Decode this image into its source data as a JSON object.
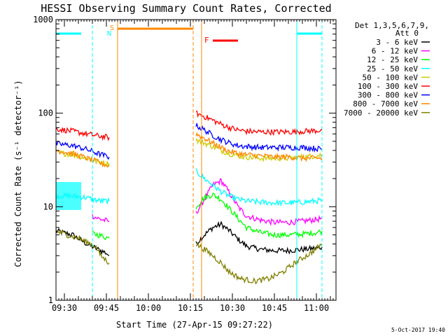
{
  "chart_data": {
    "type": "line",
    "title": "HESSI Observing Summary Count Rates, Corrected",
    "ylabel": "Corrected Count Rate",
    "ylabel_unit": "(s⁻¹ detector⁻¹)",
    "xlabel": "Start Time (27-Apr-15 09:27:22)",
    "y_scale": "log",
    "ylim": [
      1,
      1000
    ],
    "xlim_minutes": [
      "09:27",
      "11:07"
    ],
    "x_tick_labels": [
      "09:30",
      "09:45",
      "10:00",
      "10:15",
      "10:30",
      "10:45",
      "11:00"
    ],
    "y_tick_labels": [
      "1",
      "10",
      "100",
      "1000"
    ],
    "legend_header": [
      "Det 1,3,5,6,7,9,",
      "Att 0"
    ],
    "legend_position": "right",
    "grid": false,
    "series": [
      {
        "name": "3 - 6 keV",
        "color": "#000000",
        "segments": [
          {
            "x": [
              "09:27",
              "09:33",
              "09:38",
              "09:42",
              "09:44",
              "09:45",
              "09:46"
            ],
            "y": [
              5.5,
              5.0,
              4.0,
              3.5,
              3.3,
              3.2,
              3.0
            ]
          },
          {
            "x": [
              "10:17",
              "10:20",
              "10:23",
              "10:26",
              "10:29",
              "10:32",
              "10:35",
              "10:40",
              "10:45",
              "10:50",
              "10:55",
              "11:00",
              "11:02"
            ],
            "y": [
              4.0,
              5.0,
              6.0,
              6.5,
              5.5,
              4.5,
              3.8,
              3.5,
              3.4,
              3.4,
              3.5,
              3.6,
              3.7
            ]
          }
        ]
      },
      {
        "name": "6 - 12 keV",
        "color": "#ff00ff",
        "segments": [
          {
            "x": [
              "09:40",
              "09:42",
              "09:44",
              "09:46"
            ],
            "y": [
              8.0,
              7.5,
              7.2,
              7.0
            ]
          },
          {
            "x": [
              "10:17",
              "10:20",
              "10:23",
              "10:26",
              "10:29",
              "10:32",
              "10:35",
              "10:40",
              "10:45",
              "10:50",
              "10:55",
              "11:00",
              "11:02"
            ],
            "y": [
              8.5,
              12.0,
              17.0,
              19.0,
              14.0,
              10.0,
              8.0,
              7.2,
              6.8,
              6.8,
              7.0,
              7.3,
              7.5
            ]
          }
        ]
      },
      {
        "name": "12 - 25 keV",
        "color": "#00ff00",
        "segments": [
          {
            "x": [
              "09:40",
              "09:42",
              "09:44",
              "09:46"
            ],
            "y": [
              5.2,
              5.0,
              4.8,
              4.6
            ]
          },
          {
            "x": [
              "10:17",
              "10:20",
              "10:23",
              "10:26",
              "10:29",
              "10:32",
              "10:35",
              "10:40",
              "10:45",
              "10:50",
              "10:55",
              "11:00",
              "11:02"
            ],
            "y": [
              10.0,
              12.5,
              13.5,
              12.0,
              9.5,
              7.5,
              6.0,
              5.3,
              5.0,
              5.0,
              5.1,
              5.3,
              5.5
            ]
          }
        ]
      },
      {
        "name": "25 - 50 keV",
        "color": "#00ffff",
        "segments": [
          {
            "x": [
              "09:27",
              "09:33",
              "09:38",
              "09:40",
              "09:43",
              "09:46"
            ],
            "y": [
              13.0,
              13.0,
              12.5,
              12.0,
              11.5,
              11.5
            ]
          },
          {
            "x": [
              "10:17",
              "10:20",
              "10:23",
              "10:26",
              "10:29",
              "10:32",
              "10:35",
              "10:40",
              "10:45",
              "10:50",
              "10:55",
              "11:00",
              "11:02"
            ],
            "y": [
              24.0,
              20.0,
              17.0,
              14.5,
              13.0,
              12.0,
              11.5,
              11.2,
              11.0,
              11.0,
              11.2,
              11.5,
              11.8
            ]
          }
        ]
      },
      {
        "name": "50 - 100 keV",
        "color": "#cccc00",
        "segments": [
          {
            "x": [
              "09:27",
              "09:33",
              "09:38",
              "09:42",
              "09:46"
            ],
            "y": [
              38.0,
              36.0,
              33.0,
              30.0,
              29.0
            ]
          },
          {
            "x": [
              "10:17",
              "10:20",
              "10:23",
              "10:26",
              "10:29",
              "10:32",
              "10:35",
              "10:40",
              "10:45",
              "10:50",
              "10:55",
              "11:00",
              "11:02"
            ],
            "y": [
              52.0,
              48.0,
              44.0,
              40.0,
              37.0,
              35.0,
              34.0,
              33.0,
              33.0,
              33.0,
              34.0,
              35.0,
              36.0
            ]
          }
        ]
      },
      {
        "name": "100 - 300 keV",
        "color": "#ff0000",
        "segments": [
          {
            "x": [
              "09:27",
              "09:33",
              "09:38",
              "09:42",
              "09:46"
            ],
            "y": [
              68.0,
              64.0,
              60.0,
              57.0,
              55.0
            ]
          },
          {
            "x": [
              "10:17",
              "10:20",
              "10:23",
              "10:26",
              "10:29",
              "10:32",
              "10:35",
              "10:40",
              "10:45",
              "10:50",
              "10:55",
              "11:00",
              "11:02"
            ],
            "y": [
              100.0,
              92.0,
              84.0,
              76.0,
              70.0,
              66.0,
              64.0,
              63.0,
              63.0,
              63.0,
              64.0,
              65.0,
              66.0
            ]
          }
        ]
      },
      {
        "name": "300 - 800 keV",
        "color": "#0000ff",
        "segments": [
          {
            "x": [
              "09:27",
              "09:33",
              "09:38",
              "09:42",
              "09:46"
            ],
            "y": [
              47.0,
              45.0,
              41.0,
              37.0,
              34.0
            ]
          },
          {
            "x": [
              "10:17",
              "10:20",
              "10:23",
              "10:26",
              "10:29",
              "10:32",
              "10:35",
              "10:40",
              "10:45",
              "10:50",
              "10:55",
              "11:00",
              "11:02"
            ],
            "y": [
              74.0,
              66.0,
              58.0,
              52.0,
              48.0,
              45.0,
              44.0,
              43.0,
              43.0,
              43.0,
              43.0,
              42.0,
              41.0
            ]
          }
        ]
      },
      {
        "name": "800 - 7000 keV",
        "color": "#ff8800",
        "segments": [
          {
            "x": [
              "09:27",
              "09:33",
              "09:38",
              "09:42",
              "09:46"
            ],
            "y": [
              40.0,
              37.0,
              33.0,
              30.0,
              27.0
            ]
          },
          {
            "x": [
              "10:17",
              "10:20",
              "10:23",
              "10:26",
              "10:29",
              "10:32",
              "10:35",
              "10:40",
              "10:45",
              "10:50",
              "10:55",
              "11:00",
              "11:02"
            ],
            "y": [
              60.0,
              54.0,
              48.0,
              43.0,
              39.0,
              37.0,
              36.0,
              35.0,
              34.0,
              34.0,
              33.0,
              33.0,
              33.0
            ]
          }
        ]
      },
      {
        "name": "7000 - 20000 keV",
        "color": "#808000",
        "segments": [
          {
            "x": [
              "09:27",
              "09:31",
              "09:35",
              "09:38",
              "09:41",
              "09:43",
              "09:46"
            ],
            "y": [
              5.5,
              5.0,
              4.6,
              4.2,
              3.8,
              3.0,
              2.5
            ]
          },
          {
            "x": [
              "10:17",
              "10:20",
              "10:23",
              "10:26",
              "10:29",
              "10:33",
              "10:38",
              "10:43",
              "10:48",
              "10:53",
              "10:58",
              "11:02"
            ],
            "y": [
              4.0,
              3.5,
              3.0,
              2.5,
              2.0,
              1.7,
              1.6,
              1.7,
              2.0,
              2.6,
              3.2,
              4.0
            ]
          }
        ]
      }
    ],
    "annotations": [
      {
        "label": "S",
        "color": "#ff8800"
      },
      {
        "label": "N",
        "color": "#00ffff"
      },
      {
        "label": "F",
        "color": "#ff0000"
      }
    ],
    "footer_date": "5-Oct-2017 19:40"
  }
}
